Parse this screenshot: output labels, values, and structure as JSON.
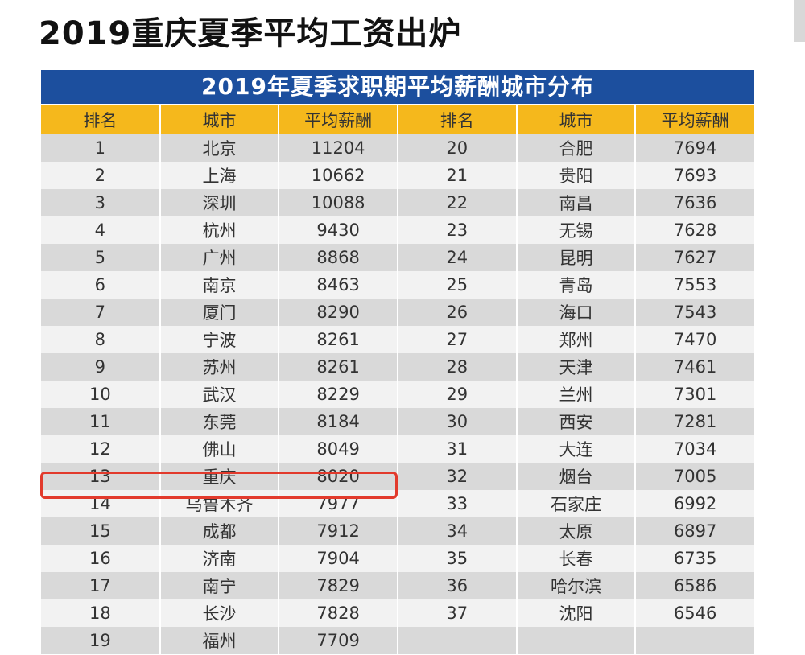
{
  "page": {
    "title": "2019重庆夏季平均工资出炉"
  },
  "table": {
    "banner": "2019年夏季求职期平均薪酬城市分布",
    "headers": [
      "排名",
      "城市",
      "平均薪酬",
      "排名",
      "城市",
      "平均薪酬"
    ],
    "rows": [
      [
        "1",
        "北京",
        "11204",
        "20",
        "合肥",
        "7694"
      ],
      [
        "2",
        "上海",
        "10662",
        "21",
        "贵阳",
        "7693"
      ],
      [
        "3",
        "深圳",
        "10088",
        "22",
        "南昌",
        "7636"
      ],
      [
        "4",
        "杭州",
        "9430",
        "23",
        "无锡",
        "7628"
      ],
      [
        "5",
        "广州",
        "8868",
        "24",
        "昆明",
        "7627"
      ],
      [
        "6",
        "南京",
        "8463",
        "25",
        "青岛",
        "7553"
      ],
      [
        "7",
        "厦门",
        "8290",
        "26",
        "海口",
        "7543"
      ],
      [
        "8",
        "宁波",
        "8261",
        "27",
        "郑州",
        "7470"
      ],
      [
        "9",
        "苏州",
        "8261",
        "28",
        "天津",
        "7461"
      ],
      [
        "10",
        "武汉",
        "8229",
        "29",
        "兰州",
        "7301"
      ],
      [
        "11",
        "东莞",
        "8184",
        "30",
        "西安",
        "7281"
      ],
      [
        "12",
        "佛山",
        "8049",
        "31",
        "大连",
        "7034"
      ],
      [
        "13",
        "重庆",
        "8020",
        "32",
        "烟台",
        "7005"
      ],
      [
        "14",
        "乌鲁木齐",
        "7977",
        "33",
        "石家庄",
        "6992"
      ],
      [
        "15",
        "成都",
        "7912",
        "34",
        "太原",
        "6897"
      ],
      [
        "16",
        "济南",
        "7904",
        "35",
        "长春",
        "6735"
      ],
      [
        "17",
        "南宁",
        "7829",
        "36",
        "哈尔滨",
        "6586"
      ],
      [
        "18",
        "长沙",
        "7828",
        "37",
        "沈阳",
        "6546"
      ],
      [
        "19",
        "福州",
        "7709",
        "",
        "",
        ""
      ]
    ],
    "highlighted_row": "13"
  },
  "colors": {
    "banner_bg": "#1c4f9e",
    "header_bg": "#f5b81c",
    "highlight_border": "#e23a2c"
  }
}
